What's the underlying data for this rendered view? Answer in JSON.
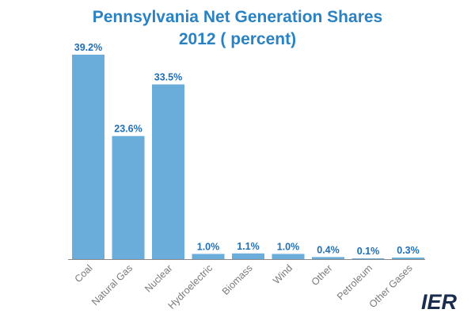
{
  "title": {
    "line1": "Pennsylvania Net Generation Shares",
    "line2": "2012 ( percent)"
  },
  "logo": {
    "text": "IER"
  },
  "colors": {
    "bar": "#6aacda",
    "title": "#2a82c2",
    "label": "#1f6fb5",
    "axis": "#8a8a8a",
    "tick_text": "#7a7a7a",
    "logo": "#1b2d4f",
    "logo_accent": "#2e7fc0"
  },
  "chart_data": {
    "type": "bar",
    "title": "Pennsylvania Net Generation Shares 2012 ( percent)",
    "categories": [
      "Coal",
      "Natural Gas",
      "Nuclear",
      "Hydroelectric",
      "Biomass",
      "Wind",
      "Other",
      "Petroleum",
      "Other Gases"
    ],
    "values": [
      39.2,
      23.6,
      33.5,
      1.0,
      1.1,
      1.0,
      0.4,
      0.1,
      0.3
    ],
    "value_labels": [
      "39.2%",
      "23.6%",
      "33.5%",
      "1.0%",
      "1.1%",
      "1.0%",
      "0.4%",
      "0.1%",
      "0.3%"
    ],
    "xlabel": "",
    "ylabel": "",
    "ylim": [
      0,
      39.2
    ],
    "grid": false,
    "legend": "none"
  }
}
